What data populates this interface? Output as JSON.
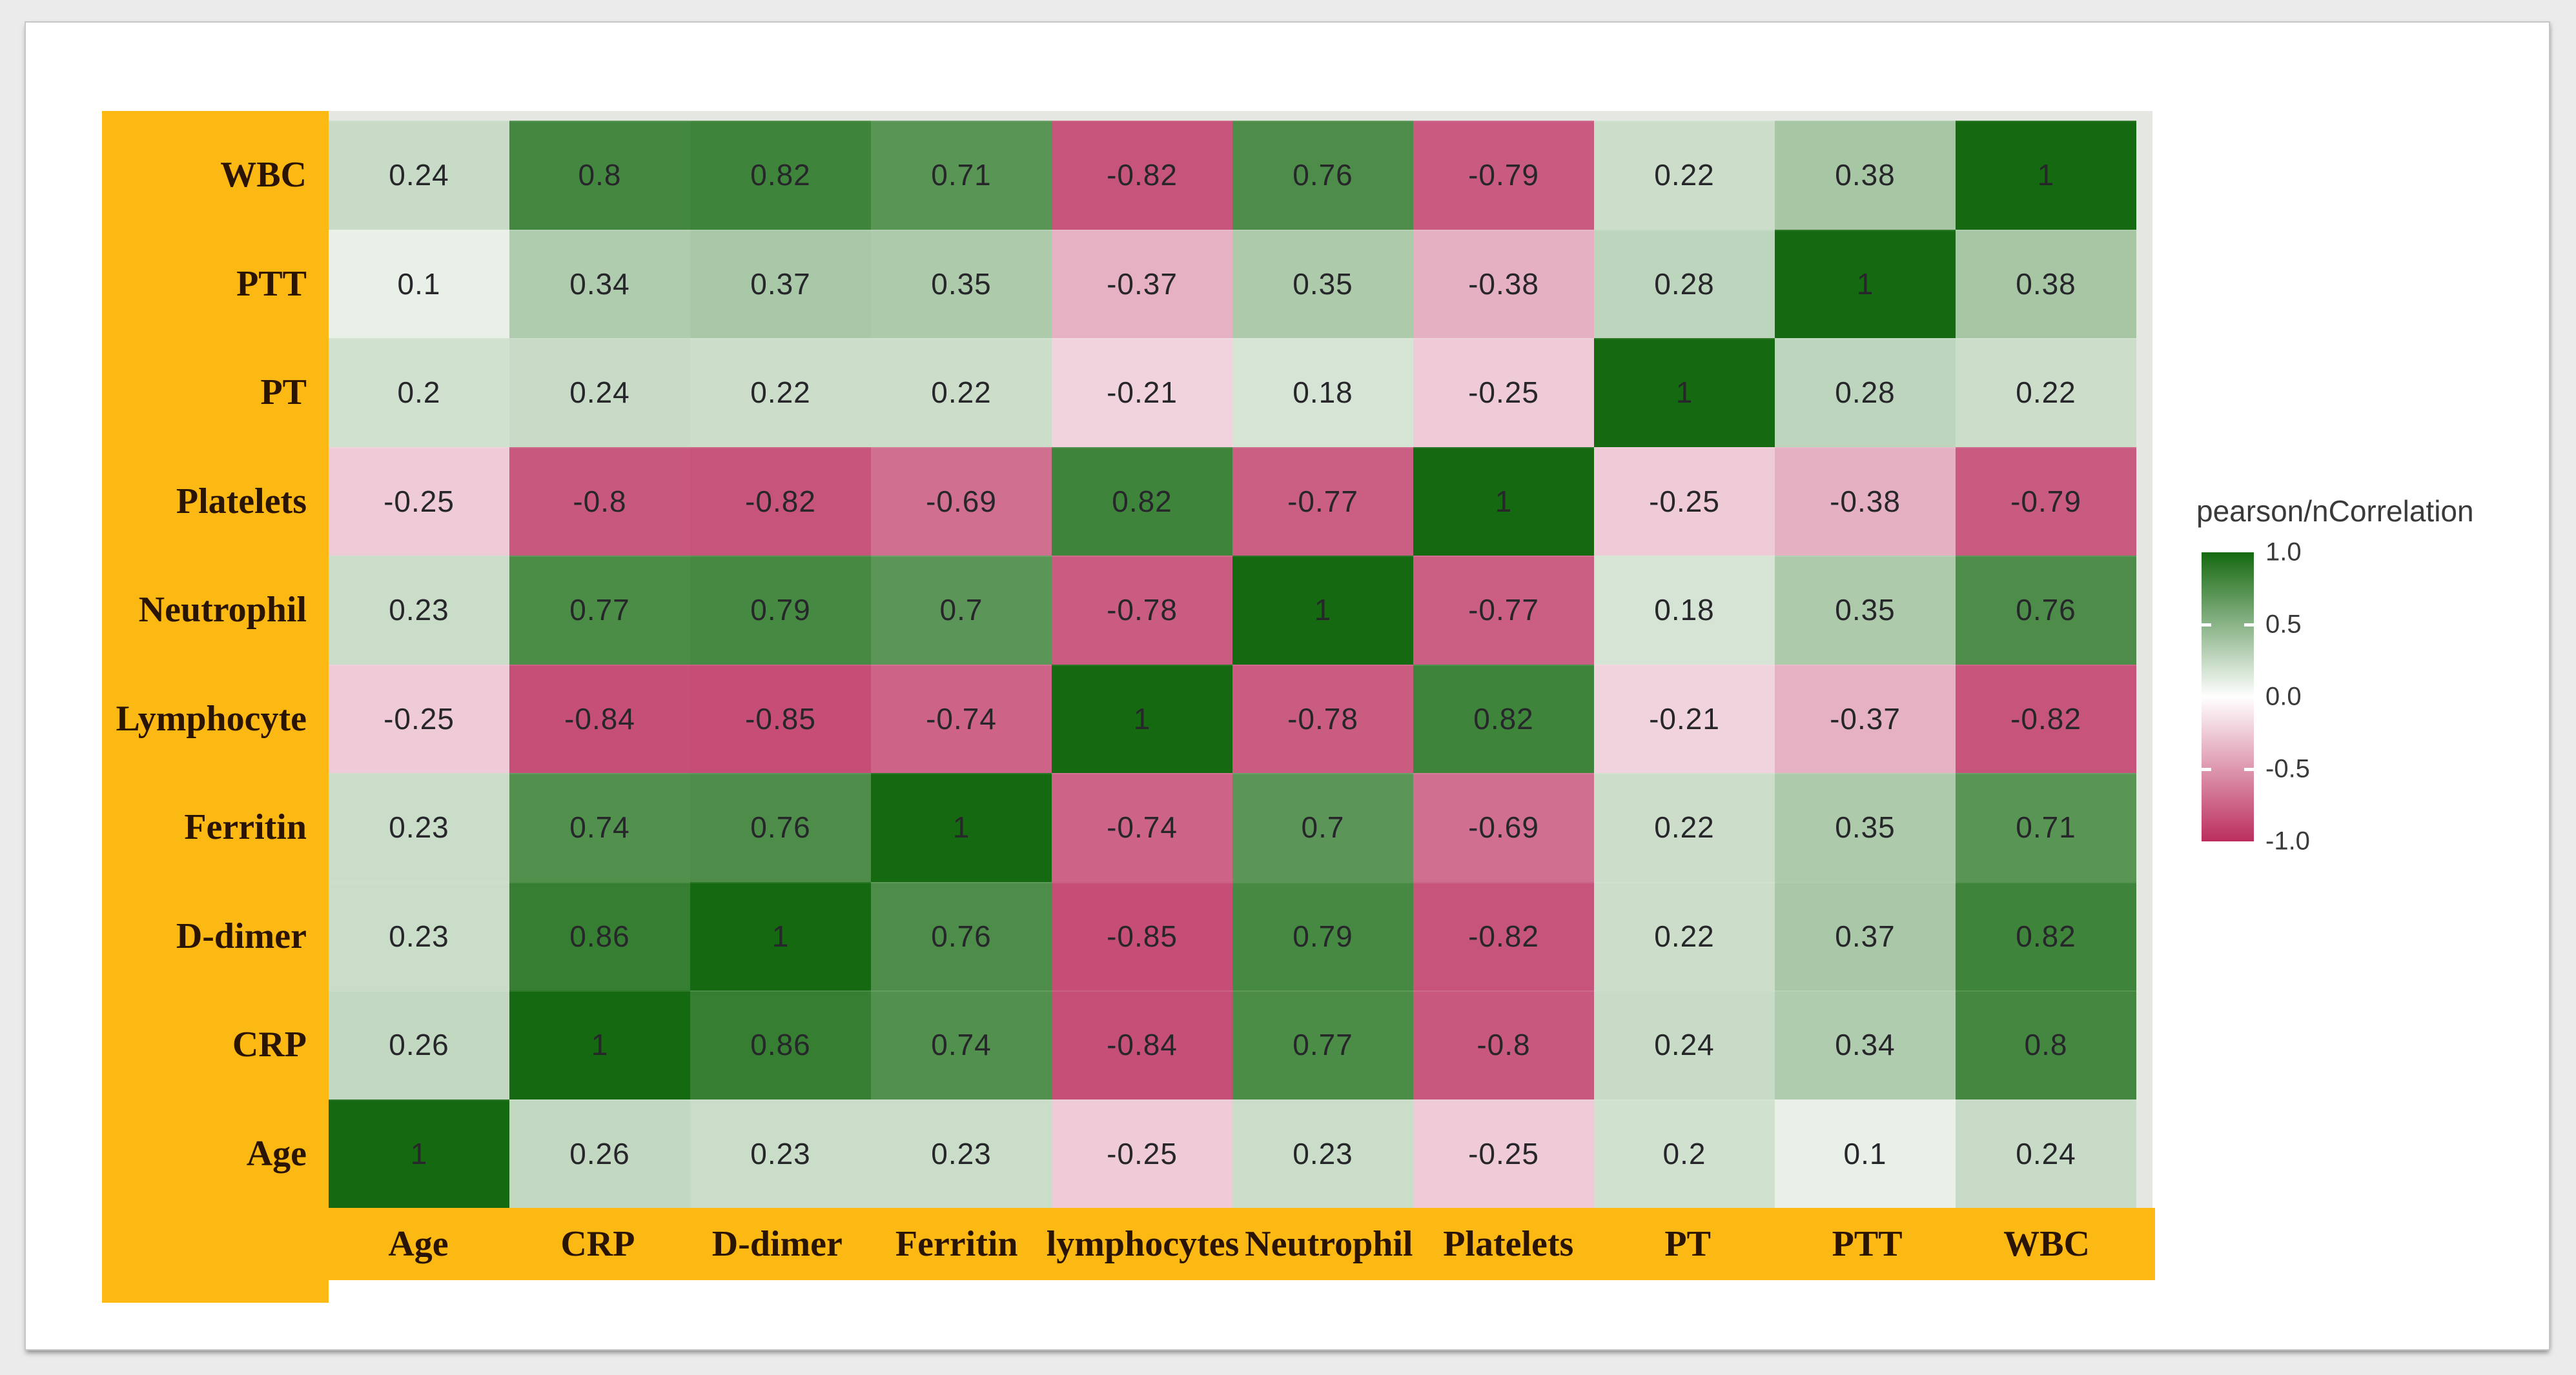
{
  "figure": {
    "outer_background": "#ebebeb",
    "page_background": "#ffffff",
    "axis_band_color": "#FCB813",
    "panel_background": "#e5e8e2",
    "axis_label_color": "#2a1505",
    "value_text_color": "#26262b"
  },
  "chart_data": {
    "type": "heatmap",
    "title": "",
    "columns": [
      "Age",
      "CRP",
      "D-dimer",
      "Ferritin",
      "lymphocytes",
      "Neutrophil",
      "Platelets",
      "PT",
      "PTT",
      "WBC"
    ],
    "rows": [
      "WBC",
      "PTT",
      "PT",
      "Platelets",
      "Neutrophil",
      "Lymphocyte",
      "Ferritin",
      "D-dimer",
      "CRP",
      "Age"
    ],
    "matrix": [
      [
        0.24,
        0.8,
        0.82,
        0.71,
        -0.82,
        0.76,
        -0.79,
        0.22,
        0.38,
        1
      ],
      [
        0.1,
        0.34,
        0.37,
        0.35,
        -0.37,
        0.35,
        -0.38,
        0.28,
        1,
        0.38
      ],
      [
        0.2,
        0.24,
        0.22,
        0.22,
        -0.21,
        0.18,
        -0.25,
        1,
        0.28,
        0.22
      ],
      [
        -0.25,
        -0.8,
        -0.82,
        -0.69,
        0.82,
        -0.77,
        1,
        -0.25,
        -0.38,
        -0.79
      ],
      [
        0.23,
        0.77,
        0.79,
        0.7,
        -0.78,
        1,
        -0.77,
        0.18,
        0.35,
        0.76
      ],
      [
        -0.25,
        -0.84,
        -0.85,
        -0.74,
        1,
        -0.78,
        0.82,
        -0.21,
        -0.37,
        -0.82
      ],
      [
        0.23,
        0.74,
        0.76,
        1,
        -0.74,
        0.7,
        -0.69,
        0.22,
        0.35,
        0.71
      ],
      [
        0.23,
        0.86,
        1,
        0.76,
        -0.85,
        0.79,
        -0.82,
        0.22,
        0.37,
        0.82
      ],
      [
        0.26,
        1,
        0.86,
        0.74,
        -0.84,
        0.77,
        -0.8,
        0.24,
        0.34,
        0.8
      ],
      [
        1,
        0.26,
        0.23,
        0.23,
        -0.25,
        0.23,
        -0.25,
        0.2,
        0.1,
        0.24
      ]
    ],
    "color_scale": {
      "domain": [
        -1,
        1
      ],
      "negative_end": "#BB2E5E",
      "zero": "#FFFFFF",
      "positive_end": "#156910"
    },
    "legend": {
      "title": "pearson/nCorrelation",
      "position": "right",
      "ticks": [
        "1.0",
        "0.5",
        "0.0",
        "-0.5",
        "-1.0"
      ],
      "tick_values": [
        1.0,
        0.5,
        0.0,
        -0.5,
        -1.0
      ]
    },
    "grid": false,
    "xlabel": "",
    "ylabel": ""
  }
}
